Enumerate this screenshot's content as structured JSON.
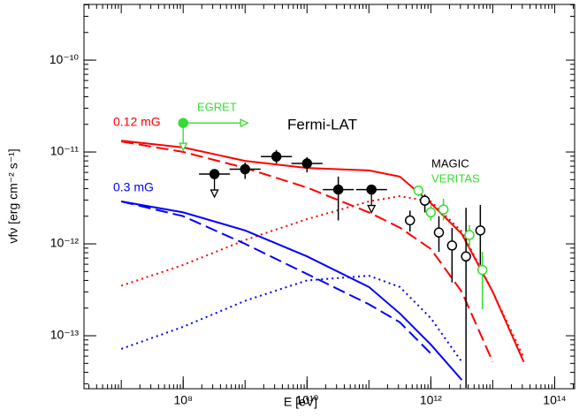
{
  "chart_data": {
    "type": "line",
    "xlabel": "E [eV]",
    "ylabel": "νfν [erg cm⁻² s⁻¹]",
    "xlog": true,
    "ylog": true,
    "xlim": [
      2500000.0,
      210000000000000.0
    ],
    "ylim": [
      2.65e-14,
      4.04e-10
    ],
    "xticks": [
      {
        "value": 100000000.0,
        "label": "10⁸"
      },
      {
        "value": 10000000000.0,
        "label": "10¹⁰"
      },
      {
        "value": 1000000000000.0,
        "label": "10¹²"
      },
      {
        "value": 100000000000000.0,
        "label": "10¹⁴"
      }
    ],
    "yticks": [
      {
        "value": 1e-13,
        "label": "10⁻¹³"
      },
      {
        "value": 1e-12,
        "label": "10⁻¹²"
      },
      {
        "value": 1e-11,
        "label": "10⁻¹¹"
      },
      {
        "value": 1e-10,
        "label": "10⁻¹⁰"
      }
    ],
    "x": [
      10000000.0,
      100000000.0,
      1000000000.0,
      10000000000.0,
      100000000000.0,
      316000000000.0,
      1000000000000.0,
      3160000000000.0,
      10000000000000.0,
      31600000000000.0
    ],
    "series": [
      {
        "color": "#ff0000",
        "dash": "solid",
        "values": [
          1.33e-11,
          1.12e-11,
          8e-12,
          6.7e-12,
          6.3e-12,
          5.4e-12,
          2.77e-12,
          1.28e-12,
          3e-13,
          5.2e-14
        ]
      },
      {
        "color": "#ff0000",
        "dash": "dashed",
        "values": [
          1.3e-11,
          1e-11,
          6.7e-12,
          4.1e-12,
          2.2e-12,
          1.5e-12,
          8.8e-13,
          3e-13,
          5.2e-14,
          null
        ]
      },
      {
        "color": "#ff0000",
        "dash": "dotted",
        "values": [
          3.5e-13,
          5.9e-13,
          1.1e-12,
          1.86e-12,
          2.9e-12,
          3.3e-12,
          2.9e-12,
          1.36e-12,
          3e-13,
          5.8e-14
        ]
      },
      {
        "color": "#0000ff",
        "dash": "solid",
        "values": [
          2.9e-12,
          2.2e-12,
          1.4e-12,
          7.3e-13,
          3.4e-13,
          1.75e-13,
          8e-14,
          3.3e-14,
          null,
          null
        ]
      },
      {
        "color": "#0000ff",
        "dash": "dashed",
        "values": [
          2.9e-12,
          2e-12,
          1e-12,
          4.7e-13,
          2.2e-13,
          1.4e-13,
          6.4e-14,
          null,
          null,
          null
        ]
      },
      {
        "color": "#0000ff",
        "dash": "dotted",
        "values": [
          7.2e-14,
          1.25e-13,
          2.4e-13,
          4e-13,
          4.5e-13,
          3.4e-13,
          1.55e-13,
          5.2e-14,
          null,
          null
        ]
      }
    ],
    "points": [
      {
        "color": "#000000",
        "filled": true,
        "x": [
          320000000.0,
          1000000000.0,
          3200000000.0,
          10000000000.0,
          32000000000.0,
          110000000000.0
        ],
        "values": [
          5.75e-12,
          6.5e-12,
          8.9e-12,
          7.5e-12,
          3.9e-12,
          3.9e-12
        ],
        "x_low": [
          180000000.0,
          560000000.0,
          1800000000.0,
          5600000000.0,
          18000000000.0,
          62000000000.0
        ],
        "x_high": [
          570000000.0,
          1780000000.0,
          5700000000.0,
          17800000000.0,
          57000000000.0,
          196000000000.0
        ],
        "y_low": [
          null,
          5.1e-12,
          7.5e-12,
          6e-12,
          1.8e-12,
          null
        ],
        "y_high": [
          null,
          7.7e-12,
          1.05e-11,
          8.8e-12,
          5.4e-12,
          null
        ],
        "upper_limits": [
          true,
          false,
          false,
          false,
          false,
          true
        ]
      },
      {
        "color": "#000000",
        "filled": false,
        "x": [
          460000000000.0,
          800000000000.0,
          1350000000000.0,
          2200000000000.0,
          3700000000000.0,
          6300000000000.0
        ],
        "values": [
          1.8e-12,
          2.95e-12,
          1.33e-12,
          9.6e-13,
          7.3e-13,
          1.4e-12
        ],
        "y_low": [
          1.36e-12,
          2.2e-12,
          8.2e-13,
          3.8e-13,
          2.7e-14,
          5.9e-13
        ],
        "y_high": [
          2.3e-12,
          3.45e-12,
          2e-12,
          1.49e-12,
          2.47e-12,
          2.65e-12
        ]
      },
      {
        "color": "#33dd33",
        "filled": false,
        "x": [
          630000000000.0,
          1000000000000.0,
          1600000000000.0,
          4200000000000.0,
          6800000000000.0
        ],
        "values": [
          3.8e-12,
          2.2e-12,
          2.37e-12,
          1.25e-12,
          5.2e-13
        ],
        "y_low": [
          3.3e-12,
          1.8e-12,
          1.8e-12,
          9.1e-13,
          1.94e-13
        ],
        "y_high": [
          4.3e-12,
          2.65e-12,
          3.1e-12,
          1.6e-12,
          8.2e-13
        ]
      },
      {
        "color": "#33dd33",
        "filled": true,
        "x": [
          100000000.0
        ],
        "values": [
          2.07e-11
        ],
        "upper_limits": [
          true
        ],
        "lower_x_limits": [
          true
        ]
      }
    ],
    "annotations": [
      {
        "text": "0.12 mG",
        "color": "#ff0000"
      },
      {
        "text": "0.3 mG",
        "color": "#0000ff"
      },
      {
        "text": "EGRET",
        "color": "#33dd33"
      },
      {
        "text": "Fermi-LAT",
        "color": "#000000"
      },
      {
        "text": "MAGIC",
        "color": "#000000"
      },
      {
        "text": "VERITAS",
        "color": "#33dd33"
      }
    ]
  }
}
